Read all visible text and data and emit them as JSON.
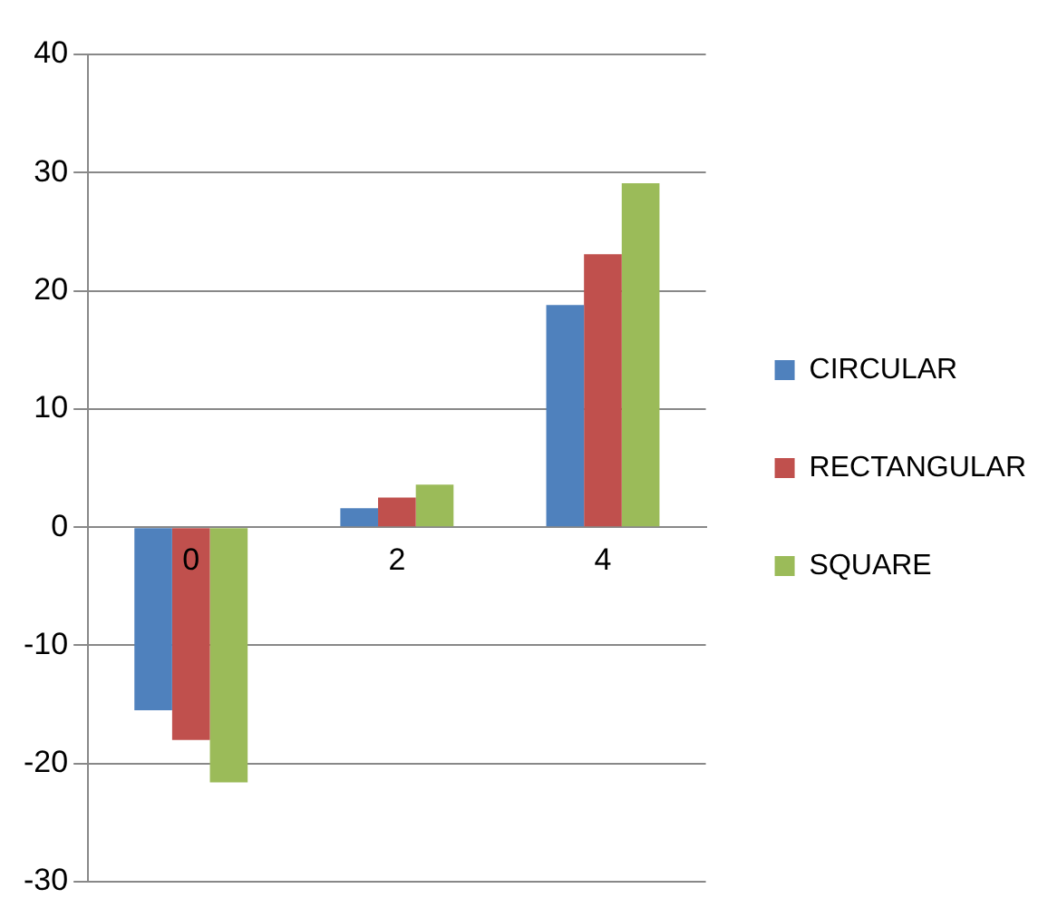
{
  "chart_data": {
    "type": "bar",
    "categories": [
      "0",
      "2",
      "4"
    ],
    "series": [
      {
        "name": "CIRCULAR",
        "color": "#4f81bd",
        "values": [
          -15.5,
          1.6,
          18.8
        ]
      },
      {
        "name": "RECTANGULAR",
        "color": "#c0504d",
        "values": [
          -18,
          2.5,
          23.1
        ]
      },
      {
        "name": "SQUARE",
        "color": "#9bbb59",
        "values": [
          -21.6,
          3.6,
          29.1
        ]
      }
    ],
    "ylim": [
      -30,
      40
    ],
    "yticks": [
      -30,
      -20,
      -10,
      0,
      10,
      20,
      30,
      40
    ],
    "grid": "y",
    "legend": "right"
  }
}
